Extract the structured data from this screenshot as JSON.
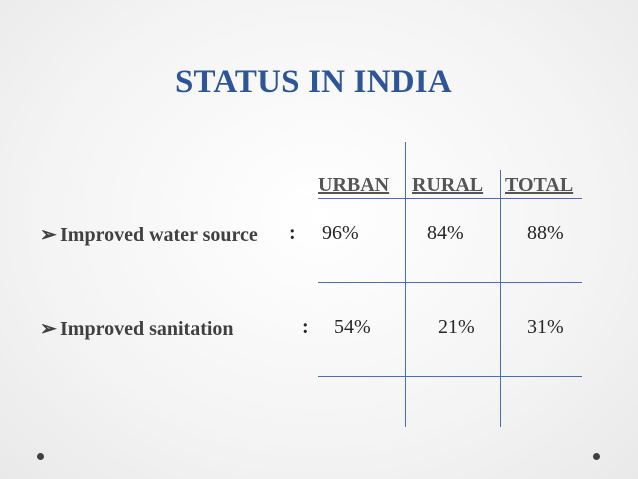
{
  "slide": {
    "title": "STATUS IN INDIA",
    "columns": [
      "URBAN",
      "RURAL",
      "TOTAL"
    ],
    "bullet_glyph": "➢",
    "rows": [
      {
        "label": "Improved water source",
        "separator": ":",
        "urban": "96%",
        "rural": "84%",
        "total": "88%"
      },
      {
        "label": "Improved sanitation",
        "separator": ":",
        "urban": "54%",
        "rural": "21%",
        "total": "31%"
      }
    ]
  },
  "colors": {
    "title": "#2e5597",
    "grid": "#4a6bbf",
    "text": "#262626"
  }
}
